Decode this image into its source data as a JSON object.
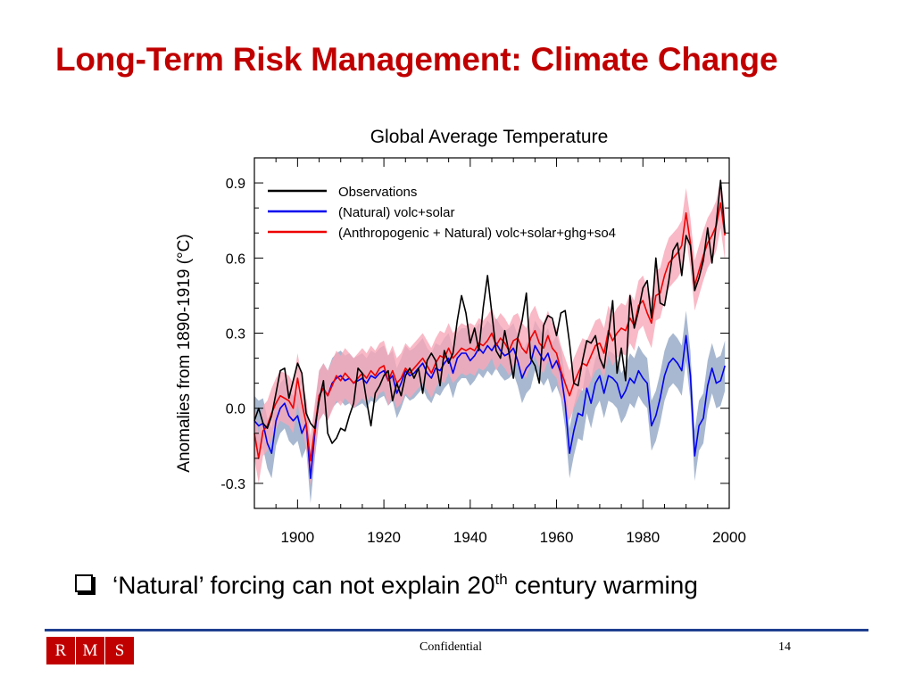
{
  "slide": {
    "title": "Long-Term Risk Management: Climate Change",
    "bullet": {
      "text_before": "‘Natural’ forcing can not explain 20",
      "superscript": "th",
      "text_after": " century warming"
    },
    "footer": {
      "logo_letters": [
        "R",
        "M",
        "S"
      ],
      "center_text": "Confidential",
      "page_number": "14"
    },
    "colors": {
      "title": "#c00000",
      "rule": "#1f3f8f",
      "logo_bg": "#c00000"
    }
  },
  "chart_data": {
    "type": "line",
    "title": "Global Average Temperature",
    "ylabel": "Anomalies from 1890-1919 (°C)",
    "xlabel": "",
    "xlim": [
      1890,
      2000
    ],
    "ylim": [
      -0.4,
      1.0
    ],
    "x_ticks": [
      1900,
      1920,
      1940,
      1960,
      1980,
      2000
    ],
    "y_ticks": [
      -0.3,
      0.0,
      0.3,
      0.6,
      0.9
    ],
    "y_tick_labels": [
      "-0.3",
      "0.0",
      "0.3",
      "0.6",
      "0.9"
    ],
    "legend_position": "top-left",
    "x": [
      1890,
      1891,
      1892,
      1893,
      1894,
      1895,
      1896,
      1897,
      1898,
      1899,
      1900,
      1901,
      1902,
      1903,
      1904,
      1905,
      1906,
      1907,
      1908,
      1909,
      1910,
      1911,
      1912,
      1913,
      1914,
      1915,
      1916,
      1917,
      1918,
      1919,
      1920,
      1921,
      1922,
      1923,
      1924,
      1925,
      1926,
      1927,
      1928,
      1929,
      1930,
      1931,
      1932,
      1933,
      1934,
      1935,
      1936,
      1937,
      1938,
      1939,
      1940,
      1941,
      1942,
      1943,
      1944,
      1945,
      1946,
      1947,
      1948,
      1949,
      1950,
      1951,
      1952,
      1953,
      1954,
      1955,
      1956,
      1957,
      1958,
      1959,
      1960,
      1961,
      1962,
      1963,
      1964,
      1965,
      1966,
      1967,
      1968,
      1969,
      1970,
      1971,
      1972,
      1973,
      1974,
      1975,
      1976,
      1977,
      1978,
      1979,
      1980,
      1981,
      1982,
      1983,
      1984,
      1985,
      1986,
      1987,
      1988,
      1989,
      1990,
      1991,
      1992,
      1993,
      1994,
      1995,
      1996,
      1997,
      1998,
      1999
    ],
    "series": [
      {
        "name": "Observations",
        "color": "#000000",
        "values": [
          -0.05,
          0.0,
          -0.06,
          -0.08,
          -0.03,
          0.06,
          0.15,
          0.16,
          0.04,
          0.11,
          0.18,
          0.14,
          -0.02,
          -0.06,
          -0.08,
          0.03,
          0.11,
          -0.1,
          -0.14,
          -0.12,
          -0.08,
          -0.09,
          -0.03,
          0.02,
          0.16,
          0.14,
          0.03,
          -0.07,
          0.06,
          0.09,
          0.13,
          0.15,
          0.03,
          0.1,
          0.05,
          0.13,
          0.16,
          0.12,
          0.16,
          0.06,
          0.19,
          0.22,
          0.19,
          0.09,
          0.23,
          0.18,
          0.22,
          0.35,
          0.45,
          0.38,
          0.26,
          0.32,
          0.23,
          0.4,
          0.53,
          0.38,
          0.23,
          0.2,
          0.31,
          0.22,
          0.12,
          0.28,
          0.35,
          0.46,
          0.2,
          0.17,
          0.1,
          0.33,
          0.37,
          0.36,
          0.29,
          0.38,
          0.39,
          0.26,
          0.1,
          0.09,
          0.19,
          0.27,
          0.26,
          0.29,
          0.2,
          0.16,
          0.29,
          0.43,
          0.14,
          0.24,
          0.11,
          0.45,
          0.32,
          0.39,
          0.48,
          0.51,
          0.36,
          0.6,
          0.42,
          0.41,
          0.51,
          0.63,
          0.66,
          0.53,
          0.69,
          0.65,
          0.47,
          0.52,
          0.59,
          0.72,
          0.58,
          0.74,
          0.91,
          0.7
        ]
      },
      {
        "name": "(Natural) volc+solar",
        "color": "#0000ee",
        "values": [
          -0.05,
          -0.07,
          -0.06,
          -0.14,
          -0.18,
          -0.05,
          0.0,
          0.02,
          -0.03,
          -0.05,
          -0.03,
          -0.1,
          -0.06,
          -0.28,
          -0.1,
          0.05,
          0.08,
          0.05,
          0.1,
          0.12,
          0.13,
          0.11,
          0.12,
          0.1,
          0.11,
          0.12,
          0.1,
          0.13,
          0.12,
          0.14,
          0.15,
          0.11,
          0.13,
          0.06,
          0.1,
          0.15,
          0.13,
          0.14,
          0.16,
          0.18,
          0.14,
          0.12,
          0.16,
          0.15,
          0.18,
          0.2,
          0.14,
          0.2,
          0.22,
          0.22,
          0.19,
          0.21,
          0.24,
          0.22,
          0.25,
          0.23,
          0.26,
          0.23,
          0.21,
          0.22,
          0.24,
          0.19,
          0.12,
          0.16,
          0.18,
          0.25,
          0.22,
          0.19,
          0.22,
          0.16,
          0.19,
          0.14,
          0.02,
          -0.18,
          -0.09,
          -0.02,
          -0.03,
          0.08,
          0.02,
          0.1,
          0.13,
          0.06,
          0.13,
          0.12,
          0.1,
          0.04,
          0.07,
          0.12,
          0.1,
          0.15,
          0.12,
          0.1,
          -0.07,
          -0.03,
          0.04,
          0.13,
          0.18,
          0.2,
          0.18,
          0.15,
          0.29,
          0.13,
          -0.19,
          -0.07,
          -0.04,
          0.09,
          0.16,
          0.1,
          0.11,
          0.17
        ]
      },
      {
        "name": "(Anthropogenic + Natural) volc+solar+ghg+so4",
        "color": "#ee0000",
        "values": [
          -0.1,
          -0.2,
          -0.09,
          -0.07,
          -0.02,
          0.02,
          0.05,
          0.04,
          0.03,
          0.0,
          0.12,
          0.02,
          -0.06,
          -0.21,
          -0.08,
          0.05,
          0.08,
          0.05,
          0.09,
          0.13,
          0.11,
          0.14,
          0.12,
          0.1,
          0.12,
          0.14,
          0.12,
          0.15,
          0.13,
          0.16,
          0.17,
          0.11,
          0.15,
          0.1,
          0.12,
          0.16,
          0.14,
          0.16,
          0.18,
          0.2,
          0.17,
          0.14,
          0.18,
          0.21,
          0.2,
          0.24,
          0.2,
          0.22,
          0.24,
          0.23,
          0.24,
          0.23,
          0.26,
          0.25,
          0.27,
          0.3,
          0.25,
          0.28,
          0.26,
          0.23,
          0.27,
          0.28,
          0.24,
          0.22,
          0.28,
          0.31,
          0.26,
          0.24,
          0.29,
          0.24,
          0.22,
          0.15,
          0.1,
          0.05,
          0.1,
          0.14,
          0.18,
          0.17,
          0.21,
          0.25,
          0.26,
          0.22,
          0.31,
          0.27,
          0.3,
          0.32,
          0.31,
          0.36,
          0.33,
          0.41,
          0.43,
          0.38,
          0.34,
          0.45,
          0.46,
          0.53,
          0.58,
          0.6,
          0.62,
          0.65,
          0.78,
          0.66,
          0.49,
          0.55,
          0.61,
          0.66,
          0.69,
          0.73,
          0.82,
          0.69
        ]
      }
    ],
    "uncertainty_bands": [
      {
        "name": "Natural spread",
        "color": "#a8b8d0",
        "half_width": 0.1
      },
      {
        "name": "Anthropogenic + Natural spread",
        "color": "#f7a8b8",
        "half_width": 0.1
      }
    ]
  }
}
